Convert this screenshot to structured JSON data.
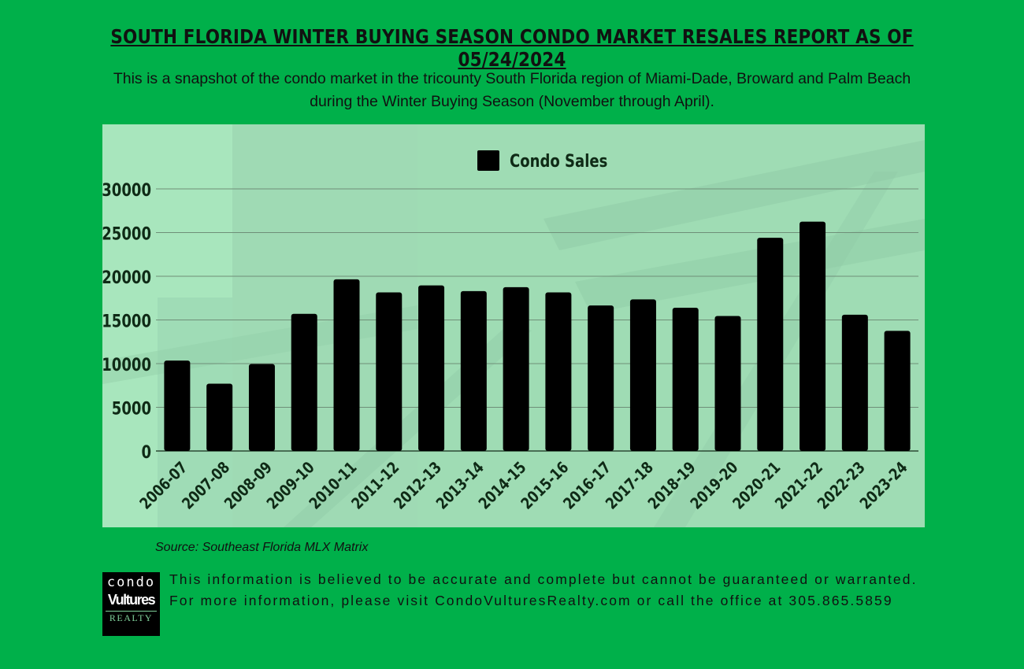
{
  "title": "SOUTH FLORIDA WINTER BUYING SEASON CONDO MARKET RESALES REPORT AS OF 05/24/2024",
  "subtitle": "This is a snapshot of the condo market in the tricounty South Florida region of Miami-Dade, Broward and Palm Beach during the Winter Buying Season (November through April).",
  "source": "Source: Southeast Florida MLX Matrix",
  "disclaimer": "This information is believed to be accurate and complete but cannot be guaranteed or warranted. For more information, please visit CondoVulturesRealty.com or call the office at 305.865.5859",
  "logo": {
    "line1": "condo",
    "line2": "Vultures",
    "line3": "REALTY"
  },
  "colors": {
    "background": "#00b04a",
    "panel": "#a8e6bd",
    "bar": "#000000",
    "text": "#111111"
  },
  "chart_data": {
    "type": "bar",
    "categories": [
      "2006-07",
      "2007-08",
      "2008-09",
      "2009-10",
      "2010-11",
      "2011-12",
      "2012-13",
      "2013-14",
      "2014-15",
      "2015-16",
      "2016-17",
      "2017-18",
      "2018-19",
      "2019-20",
      "2020-21",
      "2021-22",
      "2022-23",
      "2023-24"
    ],
    "series": [
      {
        "name": "Condo Sales",
        "values": [
          10350,
          7700,
          9950,
          15700,
          19650,
          18150,
          18950,
          18300,
          18750,
          18150,
          16650,
          17350,
          16400,
          15450,
          24400,
          26250,
          15600,
          13750
        ]
      }
    ],
    "yticks": [
      0,
      5000,
      10000,
      15000,
      20000,
      25000,
      30000
    ],
    "ylim": [
      0,
      30000
    ],
    "grid": true,
    "legend": "top-center"
  }
}
